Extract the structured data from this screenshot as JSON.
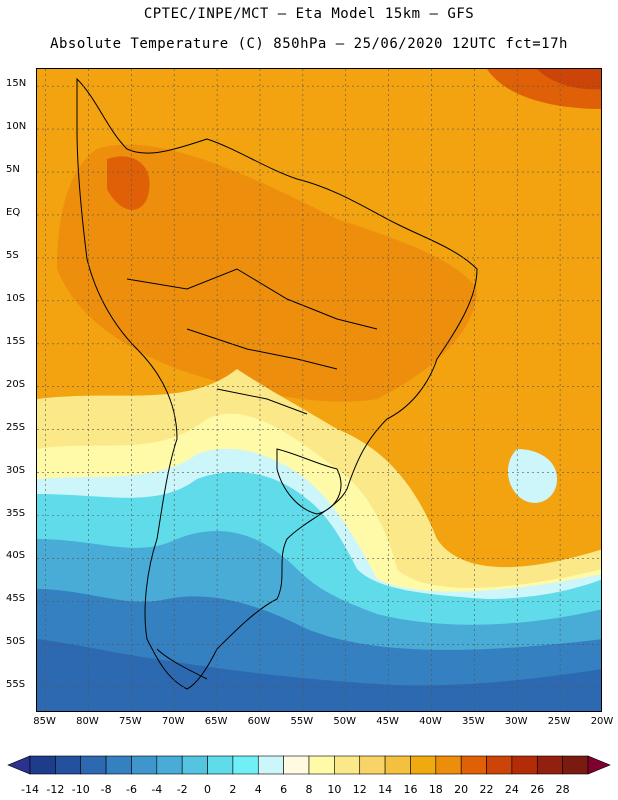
{
  "title": {
    "line1": "CPTEC/INPE/MCT –  Eta Model 15km – GFS",
    "line2": "Absolute Temperature (C) 850hPa – 25/06/2020 12UTC fct=17h"
  },
  "map": {
    "lon_range": [
      -86,
      -20
    ],
    "lat_range": [
      -58,
      17
    ],
    "lat_ticks": [
      {
        "value": 15,
        "label": "15N"
      },
      {
        "value": 10,
        "label": "10N"
      },
      {
        "value": 5,
        "label": "5N"
      },
      {
        "value": 0,
        "label": "EQ"
      },
      {
        "value": -5,
        "label": "5S"
      },
      {
        "value": -10,
        "label": "10S"
      },
      {
        "value": -15,
        "label": "15S"
      },
      {
        "value": -20,
        "label": "20S"
      },
      {
        "value": -25,
        "label": "25S"
      },
      {
        "value": -30,
        "label": "30S"
      },
      {
        "value": -35,
        "label": "35S"
      },
      {
        "value": -40,
        "label": "40S"
      },
      {
        "value": -45,
        "label": "45S"
      },
      {
        "value": -50,
        "label": "50S"
      },
      {
        "value": -55,
        "label": "55S"
      }
    ],
    "lon_ticks": [
      {
        "value": -85,
        "label": "85W"
      },
      {
        "value": -80,
        "label": "80W"
      },
      {
        "value": -75,
        "label": "75W"
      },
      {
        "value": -70,
        "label": "70W"
      },
      {
        "value": -65,
        "label": "65W"
      },
      {
        "value": -60,
        "label": "60W"
      },
      {
        "value": -55,
        "label": "55W"
      },
      {
        "value": -50,
        "label": "50W"
      },
      {
        "value": -45,
        "label": "45W"
      },
      {
        "value": -40,
        "label": "40W"
      },
      {
        "value": -35,
        "label": "35W"
      },
      {
        "value": -30,
        "label": "30W"
      },
      {
        "value": -25,
        "label": "25W"
      },
      {
        "value": -20,
        "label": "20W"
      }
    ],
    "grid_lines": "dashed"
  },
  "colorbar": {
    "labels": [
      "-14",
      "-12",
      "-10",
      "-8",
      "-6",
      "-4",
      "-2",
      "0",
      "2",
      "4",
      "6",
      "8",
      "10",
      "12",
      "14",
      "16",
      "18",
      "20",
      "22",
      "24",
      "26",
      "28"
    ],
    "colors": [
      "#1e3c8c",
      "#24519e",
      "#2d69b0",
      "#3580c0",
      "#3e96cc",
      "#48acd6",
      "#55c4e0",
      "#60dbea",
      "#70f0f6",
      "#cdf6fa",
      "#fffae0",
      "#fffaa8",
      "#fbe888",
      "#f8d468",
      "#f3c040",
      "#f0aa10",
      "#ec8d0c",
      "#e06008",
      "#cc4408",
      "#b32c08",
      "#922010",
      "#7a1a10"
    ],
    "low_arrow_color": "#2b3190",
    "high_arrow_color": "#800030"
  }
}
